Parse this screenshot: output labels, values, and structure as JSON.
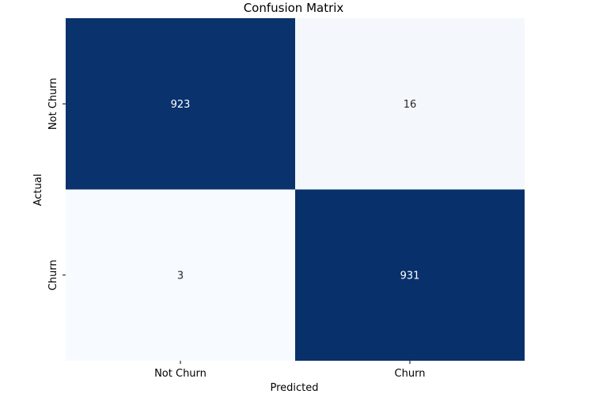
{
  "chart_data": {
    "type": "heatmap",
    "title": "Confusion Matrix",
    "xlabel": "Predicted",
    "ylabel": "Actual",
    "x_categories": [
      "Not Churn",
      "Churn"
    ],
    "y_categories": [
      "Not Churn",
      "Churn"
    ],
    "matrix": [
      [
        923,
        16
      ],
      [
        3,
        931
      ]
    ],
    "colormap": "Blues",
    "colors": {
      "low": "#f7fbff",
      "high": "#08306b",
      "text_on_dark": "#ffffff",
      "text_on_light": "#262626"
    },
    "colorbar": false
  }
}
